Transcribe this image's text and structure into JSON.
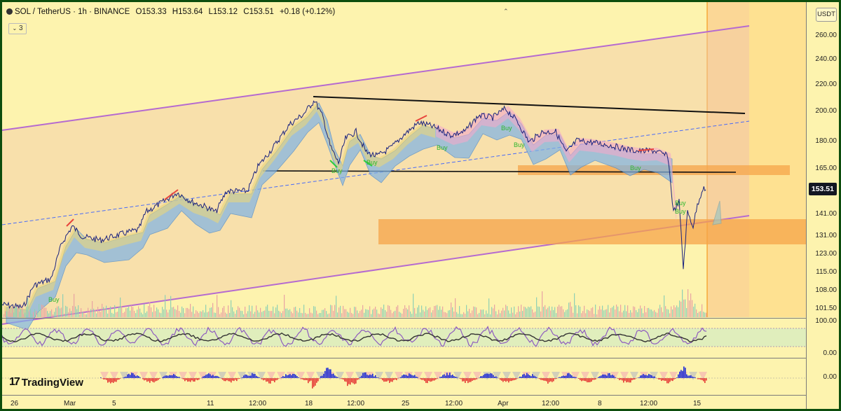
{
  "header": {
    "symbol": "SOL / TetherUS · 1h · BINANCE",
    "open": "O153.33",
    "high": "H153.64",
    "low": "L153.12",
    "close": "C153.51",
    "change": "+0.18 (+0.12%)",
    "indicator_count": "3"
  },
  "axis": {
    "currency": "USDT",
    "current_price": "153.51",
    "price_ticks": [
      "260.00",
      "240.00",
      "220.00",
      "200.00",
      "180.00",
      "165.00",
      "141.00",
      "131.00",
      "123.00",
      "115.00",
      "108.00",
      "101.50"
    ],
    "osc_ticks": [
      "100.00",
      "0.00"
    ],
    "macd_ticks": [
      "0.00"
    ],
    "time_ticks": [
      "26",
      "Mar",
      "5",
      "11",
      "12:00",
      "18",
      "12:00",
      "25",
      "12:00",
      "Apr",
      "12:00",
      "8",
      "12:00",
      "15"
    ]
  },
  "chart": {
    "buy_signal": "Buy",
    "colors": {
      "channel": "#b56ad0",
      "zone": "#f5a44a",
      "price": "#1a237e",
      "cloud_bull": "#7fb3e6",
      "cloud_bear": "#f3a9c9",
      "highlight": "#ffb74d"
    }
  },
  "brand": {
    "name": "TradingView"
  }
}
